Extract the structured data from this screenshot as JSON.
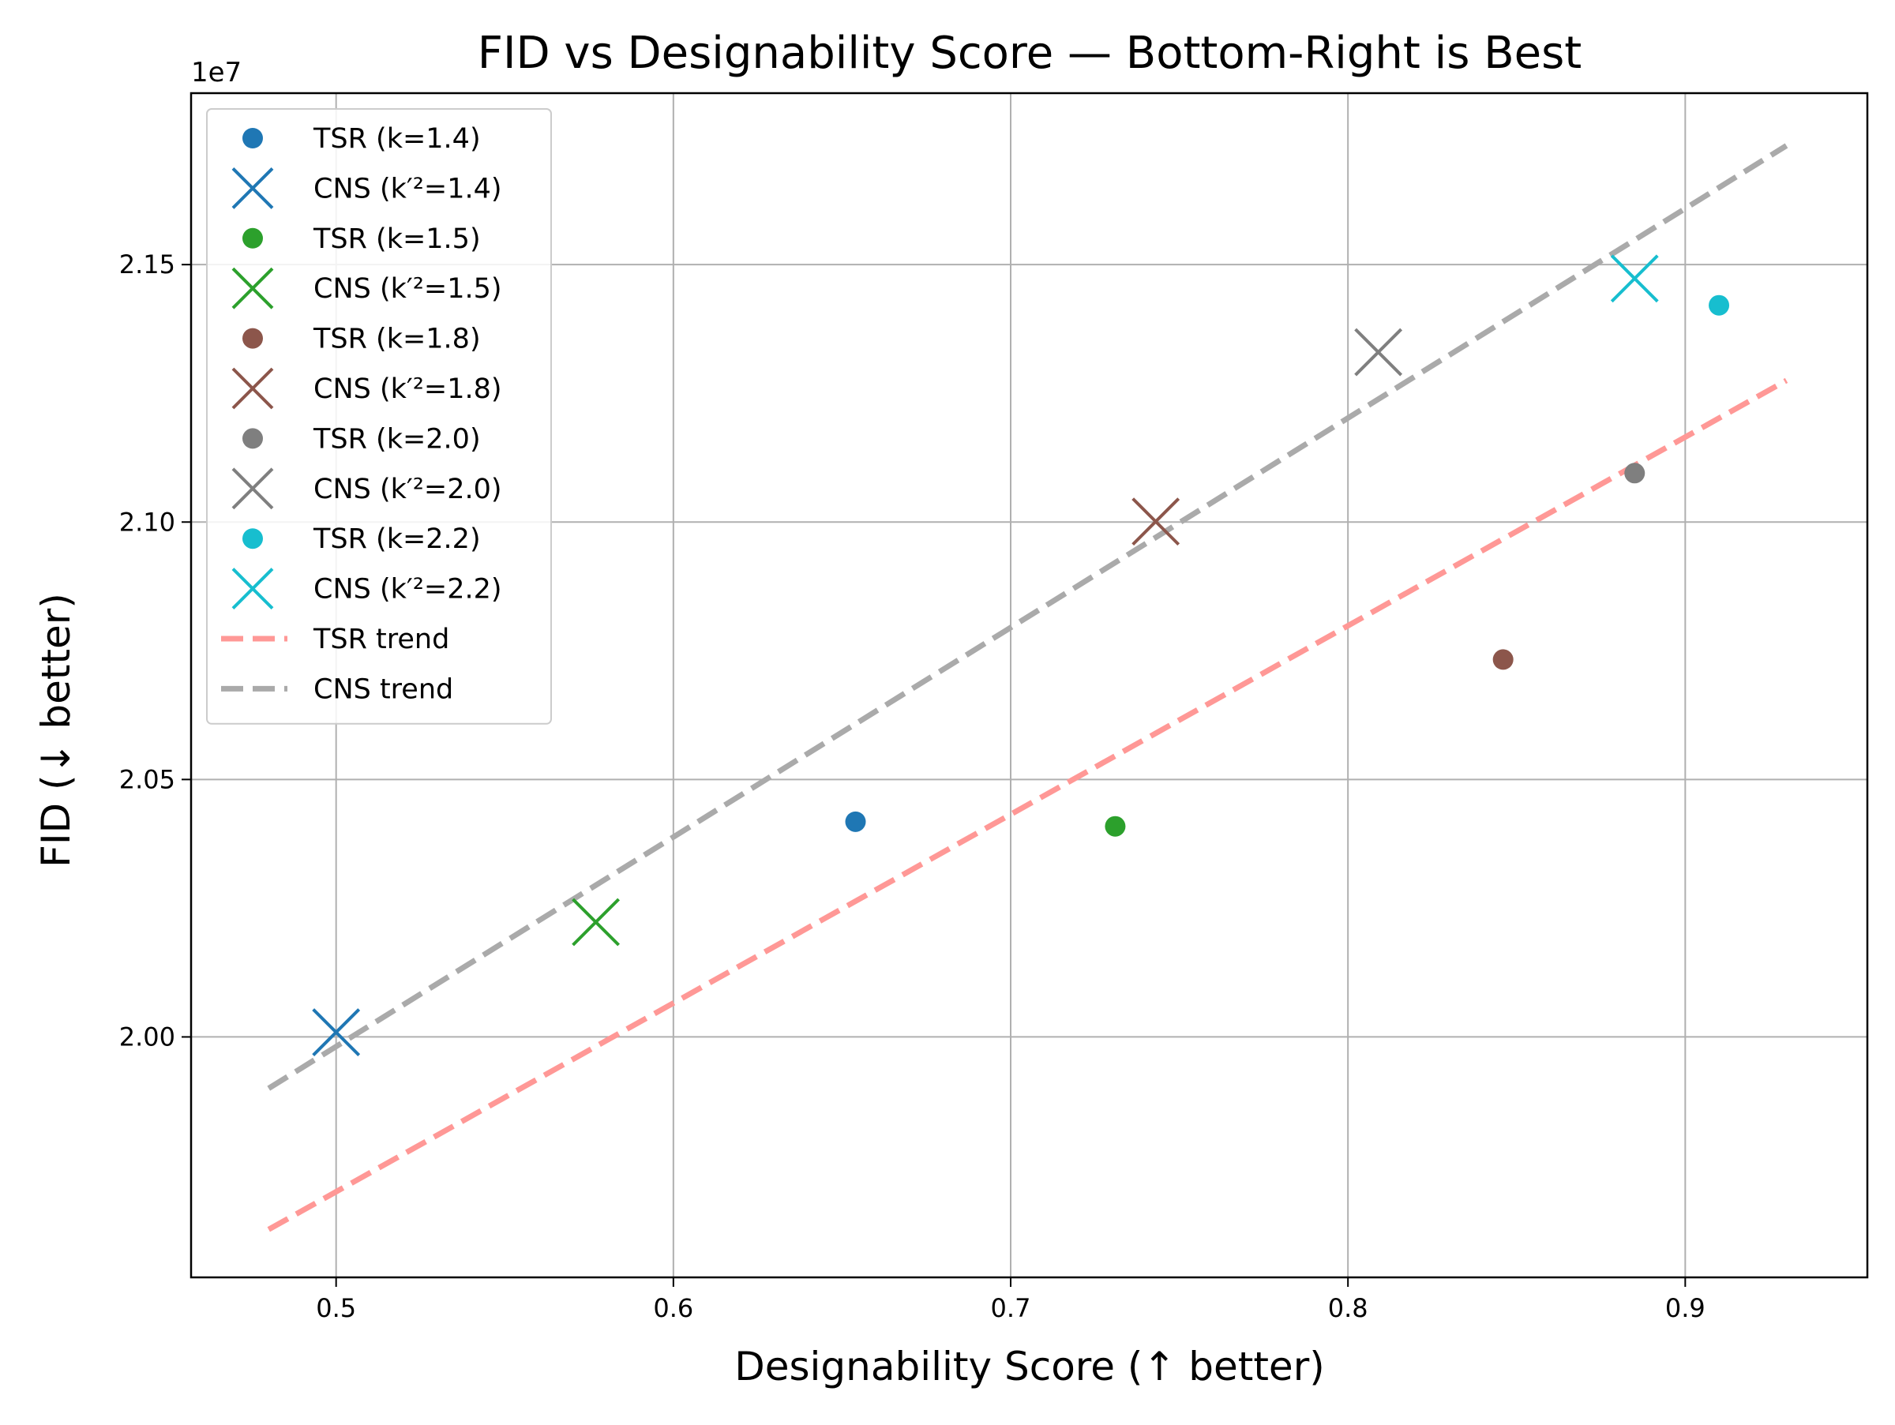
{
  "chart_data": {
    "type": "scatter",
    "title": "FID vs Designability Score — Bottom-Right is Best",
    "xlabel": "Designability Score (↑ better)",
    "ylabel": "FID (↓ better)",
    "y_offset_label": "1e7",
    "y_scale": 10000000,
    "xlim": [
      0.457,
      0.954
    ],
    "ylim": [
      19533000.0,
      21833000.0
    ],
    "x_ticks": [
      0.5,
      0.6,
      0.7,
      0.8,
      0.9
    ],
    "x_tick_labels": [
      "0.5",
      "0.6",
      "0.7",
      "0.8",
      "0.9"
    ],
    "y_ticks": [
      20000000.0,
      20500000.0,
      21000000.0,
      21500000.0
    ],
    "y_tick_labels": [
      "2.00",
      "2.05",
      "2.10",
      "2.15"
    ],
    "grid": true,
    "legend_position": "top-left",
    "series": [
      {
        "name": "TSR (k=1.4)",
        "marker": "circle",
        "color": "#1f77b4",
        "x": [
          0.654
        ],
        "y": [
          20418000.0
        ]
      },
      {
        "name": "CNS (k′²=1.4)",
        "marker": "x",
        "color": "#1f77b4",
        "x": [
          0.5
        ],
        "y": [
          20009000.0
        ]
      },
      {
        "name": "TSR (k=1.5)",
        "marker": "circle",
        "color": "#2ca02c",
        "x": [
          0.731
        ],
        "y": [
          20409000.0
        ]
      },
      {
        "name": "CNS (k′²=1.5)",
        "marker": "x",
        "color": "#2ca02c",
        "x": [
          0.577
        ],
        "y": [
          20223000.0
        ]
      },
      {
        "name": "TSR (k=1.8)",
        "marker": "circle",
        "color": "#8c564b",
        "x": [
          0.846
        ],
        "y": [
          20733000.0
        ]
      },
      {
        "name": "CNS (k′²=1.8)",
        "marker": "x",
        "color": "#8c564b",
        "x": [
          0.743
        ],
        "y": [
          21001000.0
        ]
      },
      {
        "name": "TSR (k=2.0)",
        "marker": "circle",
        "color": "#7f7f7f",
        "x": [
          0.885
        ],
        "y": [
          21095000.0
        ]
      },
      {
        "name": "CNS (k′²=2.0)",
        "marker": "x",
        "color": "#7f7f7f",
        "x": [
          0.809
        ],
        "y": [
          21330000.0
        ]
      },
      {
        "name": "TSR (k=2.2)",
        "marker": "circle",
        "color": "#17becf",
        "x": [
          0.91
        ],
        "y": [
          21421000.0
        ]
      },
      {
        "name": "CNS (k′²=2.2)",
        "marker": "x",
        "color": "#17becf",
        "x": [
          0.885
        ],
        "y": [
          21473000.0
        ]
      }
    ],
    "trends": [
      {
        "name": "TSR trend",
        "color": "#ff9896",
        "x": [
          0.48,
          0.93
        ],
        "y": [
          19626000.0,
          21275000.0
        ]
      },
      {
        "name": "CNS trend",
        "color": "#aaaaaa",
        "x": [
          0.48,
          0.93
        ],
        "y": [
          19900000.0,
          21731000.0
        ]
      }
    ]
  }
}
